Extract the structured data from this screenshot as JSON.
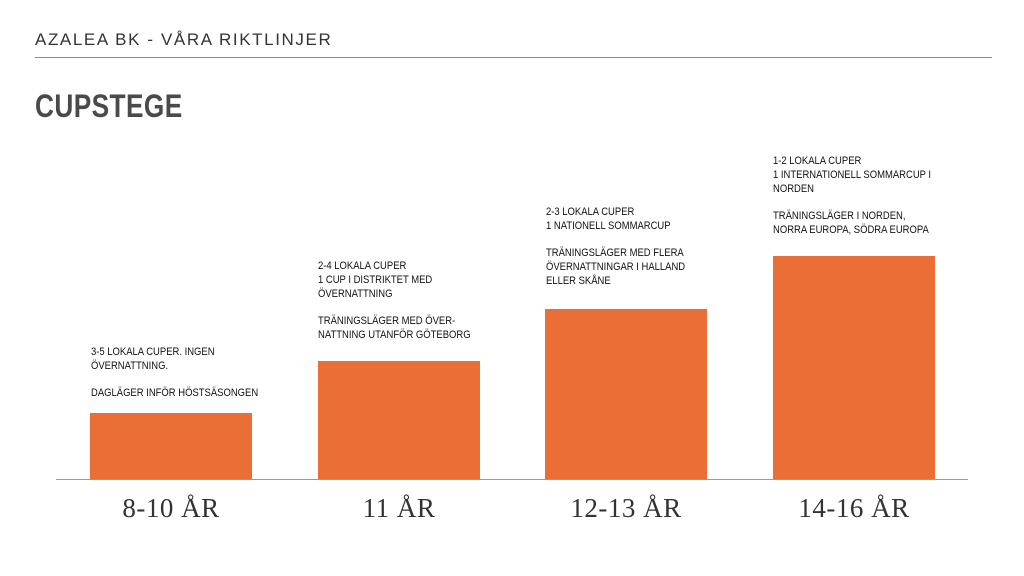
{
  "header": {
    "org_title": "AZALEA BK - VÅRA RIKTLINJER"
  },
  "page": {
    "title": "CUPSTEGE"
  },
  "colors": {
    "bar": "#ea6e36",
    "axis": "#9a9a9a",
    "rule": "#8c8c8c"
  },
  "steps": [
    {
      "age": "8-10 ÅR",
      "cups": "3-5 LOKALA CUPER. INGEN\nÖVERNATTNING.",
      "camp": "DAGLÄGER INFÖR HÖSTSÄSONGEN",
      "level": 1
    },
    {
      "age": "11 ÅR",
      "cups": "2-4 LOKALA CUPER\n1 CUP I DISTRIKTET MED\nÖVERNATTNING",
      "camp": "TRÄNINGSLÄGER MED ÖVER-\nNATTNING UTANFÖR GÖTEBORG",
      "level": 2
    },
    {
      "age": "12-13 ÅR",
      "cups": "2-3  LOKALA CUPER\n1 NATIONELL SOMMARCUP",
      "camp": "TRÄNINGSLÄGER MED FLERA\nÖVERNATTNINGAR I HALLAND\nELLER SKÅNE",
      "level": 3
    },
    {
      "age": "14-16 ÅR",
      "cups": "1-2 LOKALA CUPER\n1 INTERNATIONELL SOMMARCUP I\nNORDEN",
      "camp": "TRÄNINGSLÄGER I NORDEN,\nNORRA EUROPA, SÖDRA EUROPA",
      "level": 4
    }
  ]
}
